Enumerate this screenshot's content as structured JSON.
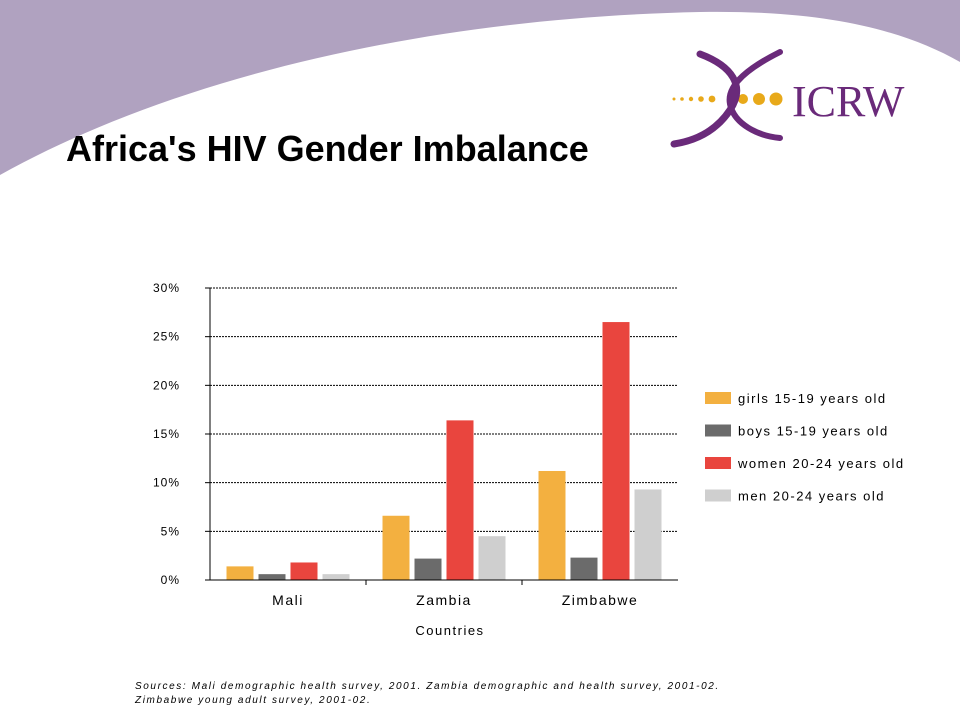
{
  "page": {
    "title": "Africa's HIV Gender Imbalance",
    "logo_text": "ICRW",
    "source_line1": "Sources: Mali demographic health survey, 2001. Zambia demographic and health survey, 2001-02.",
    "source_line2": "Zimbabwe young adult survey, 2001-02."
  },
  "colors": {
    "banner": "#b0a2c0",
    "logo_purple": "#6a2a7a",
    "logo_gold": "#e8a91a"
  },
  "chart_data": {
    "type": "bar",
    "categories": [
      "Mali",
      "Zambia",
      "Zimbabwe"
    ],
    "xlabel": "Countries",
    "ylabel": "",
    "ylim": [
      0,
      30
    ],
    "yticks": [
      "0%",
      "5%",
      "10%",
      "15%",
      "20%",
      "25%",
      "30%"
    ],
    "grid": true,
    "legend_position": "right",
    "series": [
      {
        "name": "girls 15-19 years old",
        "values": [
          1.4,
          6.6,
          11.2
        ],
        "color": "#f3b040"
      },
      {
        "name": "boys 15-19 years old",
        "values": [
          0.6,
          2.2,
          2.3
        ],
        "color": "#6b6b6b"
      },
      {
        "name": "women 20-24 years old",
        "values": [
          1.8,
          16.4,
          26.5
        ],
        "color": "#e9453e"
      },
      {
        "name": "men 20-24 years old",
        "values": [
          0.6,
          4.5,
          9.3
        ],
        "color": "#cfcfcf"
      }
    ]
  }
}
